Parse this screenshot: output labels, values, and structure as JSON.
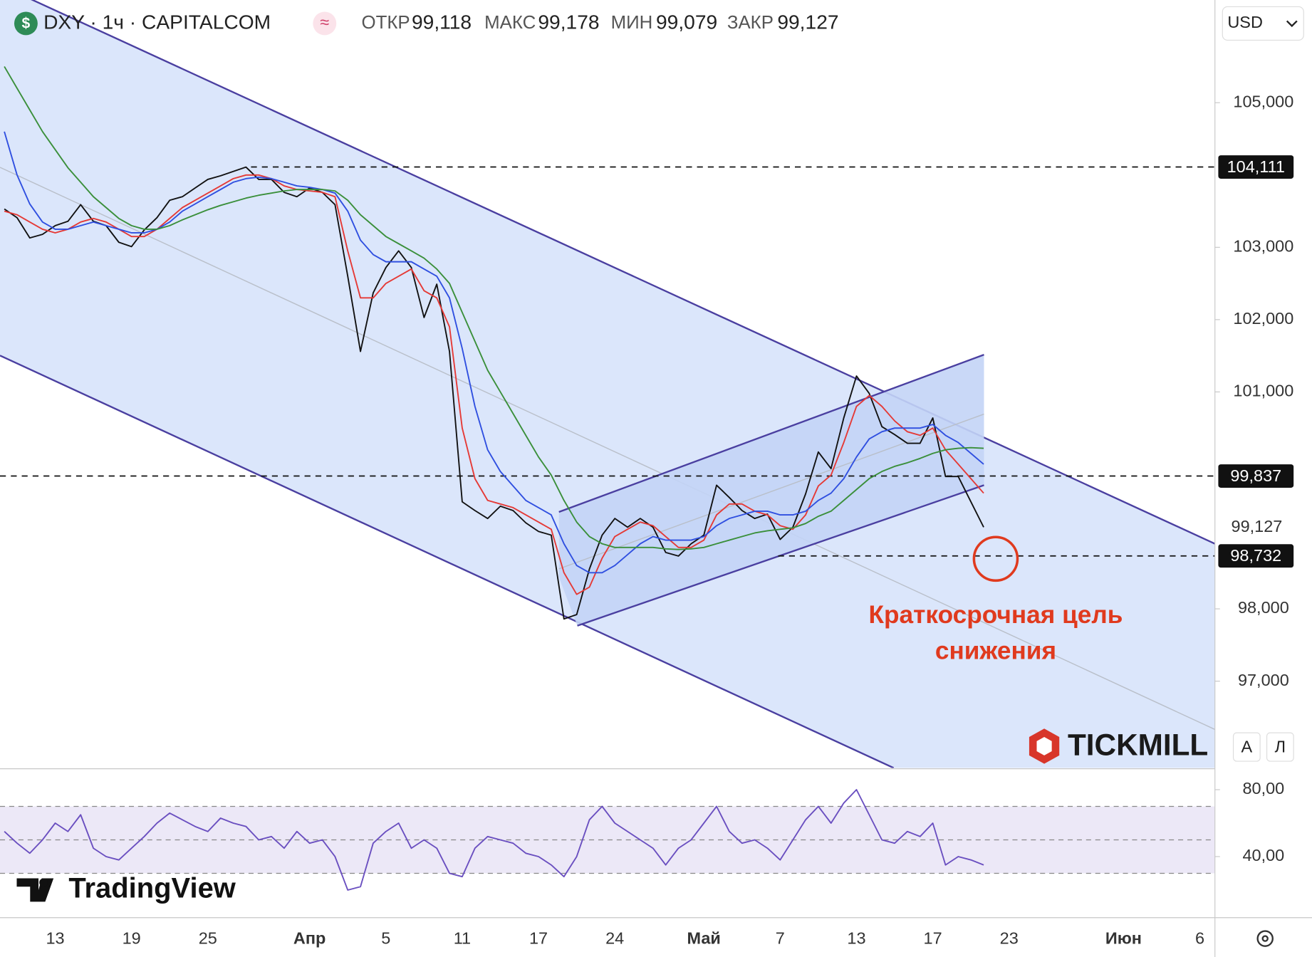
{
  "header": {
    "symbol": "DXY · 1ч · CAPITALCOM",
    "fields": [
      [
        "ОТКР",
        "99,118"
      ],
      [
        "МАКС",
        "99,178"
      ],
      [
        "МИН",
        "99,079"
      ],
      [
        "ЗАКР",
        "99,127"
      ]
    ],
    "currency": "USD",
    "buttons": [
      "А",
      "Л"
    ],
    "logos": [
      "TICKMILL",
      "TradingView"
    ]
  },
  "chart_data": [
    {
      "type": "line",
      "categories": [
        null,
        null,
        null,
        null,
        "13",
        null,
        null,
        null,
        null,
        null,
        "19",
        null,
        null,
        null,
        null,
        null,
        "25",
        null,
        null,
        null,
        null,
        null,
        null,
        null,
        "Апр",
        null,
        null,
        null,
        null,
        null,
        "5",
        null,
        null,
        null,
        null,
        null,
        "11",
        null,
        null,
        null,
        null,
        null,
        "17",
        null,
        null,
        null,
        null,
        null,
        "24",
        null,
        null,
        null,
        null,
        null,
        null,
        "Май",
        null,
        null,
        null,
        null,
        null,
        "7",
        null,
        null,
        null,
        null,
        null,
        "13",
        null,
        null,
        null,
        null,
        null,
        "17",
        null,
        null,
        null,
        null,
        null,
        "23",
        null,
        null,
        null,
        null,
        null,
        null,
        null,
        null,
        "Июн",
        null,
        null,
        null,
        null,
        null,
        "6",
        null
      ],
      "series": [
        {
          "color": "#111111",
          "values": [
            103.53,
            103.41,
            103.13,
            103.18,
            103.3,
            103.36,
            103.59,
            103.36,
            103.3,
            103.07,
            103.01,
            103.24,
            103.41,
            103.65,
            103.7,
            103.82,
            103.94,
            103.99,
            104.05,
            104.11,
            103.94,
            103.94,
            103.76,
            103.7,
            103.82,
            103.76,
            103.59,
            102.6,
            101.56,
            102.37,
            102.72,
            102.95,
            102.72,
            102.03,
            102.49,
            101.56,
            99.48,
            99.36,
            99.25,
            99.42,
            99.36,
            99.19,
            99.07,
            99.02,
            97.86,
            97.92,
            98.55,
            99.02,
            99.25,
            99.13,
            99.25,
            99.13,
            98.78,
            98.73,
            98.9,
            99.02,
            99.71,
            99.54,
            99.36,
            99.25,
            99.31,
            98.96,
            99.13,
            99.59,
            100.17,
            99.94,
            100.64,
            101.22,
            100.98,
            100.52,
            100.41,
            100.29,
            100.29,
            100.64,
            99.83,
            99.83,
            99.48,
            99.13,
            null,
            null,
            null,
            null,
            null,
            null,
            null,
            null,
            null,
            null,
            null,
            null,
            null,
            null,
            null,
            null,
            null,
            null
          ]
        },
        {
          "color": "#e53935",
          "values": [
            103.5,
            103.45,
            103.35,
            103.25,
            103.2,
            103.25,
            103.35,
            103.4,
            103.35,
            103.25,
            103.15,
            103.15,
            103.25,
            103.4,
            103.55,
            103.65,
            103.75,
            103.85,
            103.95,
            104.0,
            104.0,
            103.95,
            103.85,
            103.8,
            103.78,
            103.76,
            103.7,
            102.95,
            102.3,
            102.3,
            102.5,
            102.6,
            102.7,
            102.4,
            102.3,
            101.9,
            100.5,
            99.8,
            99.5,
            99.45,
            99.4,
            99.3,
            99.2,
            99.1,
            98.5,
            98.2,
            98.3,
            98.7,
            99.0,
            99.1,
            99.2,
            99.15,
            99.0,
            98.85,
            98.85,
            98.95,
            99.3,
            99.45,
            99.45,
            99.35,
            99.3,
            99.15,
            99.1,
            99.3,
            99.7,
            99.85,
            100.3,
            100.8,
            100.95,
            100.8,
            100.6,
            100.45,
            100.4,
            100.5,
            100.2,
            100.0,
            99.8,
            99.6,
            null,
            null,
            null,
            null,
            null,
            null,
            null,
            null,
            null,
            null,
            null,
            null,
            null,
            null,
            null,
            null,
            null,
            null
          ]
        },
        {
          "color": "#2f4fe0",
          "values": [
            104.6,
            104.0,
            103.6,
            103.35,
            103.25,
            103.25,
            103.3,
            103.35,
            103.3,
            103.25,
            103.2,
            103.2,
            103.25,
            103.35,
            103.5,
            103.6,
            103.7,
            103.8,
            103.9,
            103.95,
            103.97,
            103.95,
            103.9,
            103.85,
            103.83,
            103.8,
            103.75,
            103.5,
            103.1,
            102.9,
            102.8,
            102.8,
            102.8,
            102.7,
            102.6,
            102.3,
            101.6,
            100.8,
            100.2,
            99.9,
            99.7,
            99.5,
            99.4,
            99.3,
            98.9,
            98.6,
            98.5,
            98.5,
            98.6,
            98.75,
            98.9,
            99.0,
            98.95,
            98.95,
            98.95,
            99.0,
            99.15,
            99.25,
            99.3,
            99.35,
            99.35,
            99.3,
            99.3,
            99.35,
            99.5,
            99.6,
            99.8,
            100.1,
            100.35,
            100.45,
            100.5,
            100.5,
            100.5,
            100.55,
            100.4,
            100.3,
            100.15,
            100.0,
            null,
            null,
            null,
            null,
            null,
            null,
            null,
            null,
            null,
            null,
            null,
            null,
            null,
            null,
            null,
            null,
            null,
            null
          ]
        },
        {
          "color": "#3a8f3a",
          "values": [
            105.5,
            105.2,
            104.9,
            104.6,
            104.35,
            104.1,
            103.9,
            103.7,
            103.55,
            103.4,
            103.3,
            103.25,
            103.25,
            103.3,
            103.38,
            103.45,
            103.52,
            103.58,
            103.63,
            103.68,
            103.72,
            103.75,
            103.78,
            103.8,
            103.8,
            103.8,
            103.78,
            103.65,
            103.45,
            103.3,
            103.15,
            103.05,
            102.95,
            102.85,
            102.7,
            102.5,
            102.1,
            101.7,
            101.3,
            101.0,
            100.7,
            100.4,
            100.1,
            99.85,
            99.5,
            99.2,
            99.0,
            98.9,
            98.85,
            98.85,
            98.85,
            98.85,
            98.83,
            98.82,
            98.83,
            98.85,
            98.9,
            98.95,
            99.0,
            99.05,
            99.08,
            99.1,
            99.12,
            99.18,
            99.28,
            99.35,
            99.5,
            99.65,
            99.8,
            99.9,
            99.97,
            100.02,
            100.08,
            100.15,
            100.2,
            100.22,
            100.23,
            100.22,
            null,
            null,
            null,
            null,
            null,
            null,
            null,
            null,
            null,
            null,
            null,
            null,
            null,
            null,
            null,
            null,
            null,
            null
          ]
        }
      ],
      "ylim": [
        95.8,
        106.42
      ],
      "yticks": [
        {
          "value": 97,
          "label": "97,000"
        },
        {
          "value": 98,
          "label": "98,000"
        },
        {
          "value": 101,
          "label": "101,000"
        },
        {
          "value": 102,
          "label": "102,000"
        },
        {
          "value": 103,
          "label": "103,000"
        },
        {
          "value": 105,
          "label": "105,000"
        }
      ],
      "levels": [
        {
          "value": 104.111,
          "label": "104,111"
        },
        {
          "value": 99.837,
          "label": "99,837"
        },
        {
          "value": 98.732,
          "label": "98,732"
        }
      ],
      "last": {
        "value": 99.127,
        "label": "99,127"
      },
      "annotation": [
        "Краткосрочная цель",
        "снижения"
      ]
    },
    {
      "type": "line",
      "series": [
        {
          "color": "#6a4fc0",
          "values": [
            55,
            48,
            42,
            50,
            60,
            55,
            65,
            45,
            40,
            38,
            45,
            52,
            60,
            66,
            62,
            58,
            55,
            63,
            60,
            58,
            50,
            52,
            45,
            55,
            48,
            50,
            40,
            20,
            22,
            48,
            55,
            60,
            45,
            50,
            45,
            30,
            28,
            45,
            52,
            50,
            48,
            42,
            40,
            35,
            28,
            40,
            62,
            70,
            60,
            55,
            50,
            45,
            35,
            45,
            50,
            60,
            70,
            55,
            48,
            50,
            45,
            38,
            50,
            62,
            70,
            60,
            72,
            80,
            65,
            50,
            48,
            55,
            52,
            60,
            35,
            40,
            38,
            35,
            null,
            null,
            null,
            null,
            null,
            null,
            null,
            null,
            null,
            null,
            null,
            null,
            null,
            null,
            null,
            null,
            null,
            null
          ]
        }
      ],
      "ylim": [
        3.5,
        92
      ],
      "yticks": [
        {
          "value": 80,
          "label": "80,00"
        },
        {
          "value": 40,
          "label": "40,00"
        }
      ],
      "bands": [
        70,
        50,
        30
      ]
    }
  ]
}
